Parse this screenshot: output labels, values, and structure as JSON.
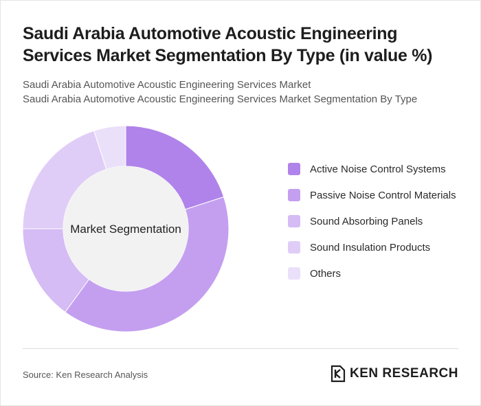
{
  "title": "Saudi Arabia Automotive Acoustic Engineering Services Market Segmentation By Type (in value %)",
  "subtitle_lines": [
    "Saudi Arabia Automotive Acoustic Engineering Services Market",
    "Saudi Arabia Automotive Acoustic Engineering Services Market Segmentation By Type"
  ],
  "chart_data": {
    "type": "pie",
    "center_label": "Market Segmentation",
    "categories": [
      "Active Noise Control Systems",
      "Passive Noise Control Materials",
      "Sound Absorbing Panels",
      "Sound Insulation Products",
      "Others"
    ],
    "values": [
      20,
      40,
      15,
      20,
      5
    ],
    "colors": [
      "#b083ea",
      "#c49ff0",
      "#d5bcf4",
      "#e0cdf7",
      "#ebe0fa"
    ],
    "legend_position": "right"
  },
  "source": "Source: Ken Research Analysis",
  "logo": {
    "text": "KEN RESEARCH"
  }
}
